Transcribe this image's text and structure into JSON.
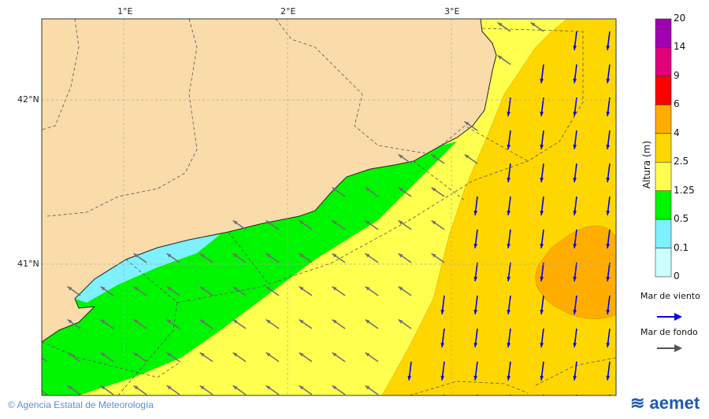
{
  "map": {
    "lon_labels": [
      "1°E",
      "2°E",
      "3°E"
    ],
    "lat_labels": [
      "42°N",
      "41°N"
    ],
    "colors": {
      "land": "#fadcaa",
      "cyan": "#7ef0ff",
      "green": "#00f500",
      "yellow": "#ffff50",
      "gold": "#ffd700",
      "orange": "#ffad00",
      "wind_arrow": "#0000ee",
      "swell_arrow": "#707070"
    }
  },
  "legend": {
    "title": "Altura (m)",
    "ticks": [
      "0",
      "0.1",
      "0.5",
      "1.25",
      "2.5",
      "4",
      "6",
      "9",
      "14",
      "20"
    ],
    "band_colors": [
      "#ccffff",
      "#7ef0ff",
      "#00f500",
      "#ffff50",
      "#ffd700",
      "#ffad00",
      "#ff0000",
      "#e0007a",
      "#a000b0"
    ],
    "wind_sea_label": "Mar de viento",
    "swell_label": "Mar de fondo"
  },
  "footer": {
    "credit": "© Agencia Estatal de Meteorología",
    "logo": "aemet"
  }
}
